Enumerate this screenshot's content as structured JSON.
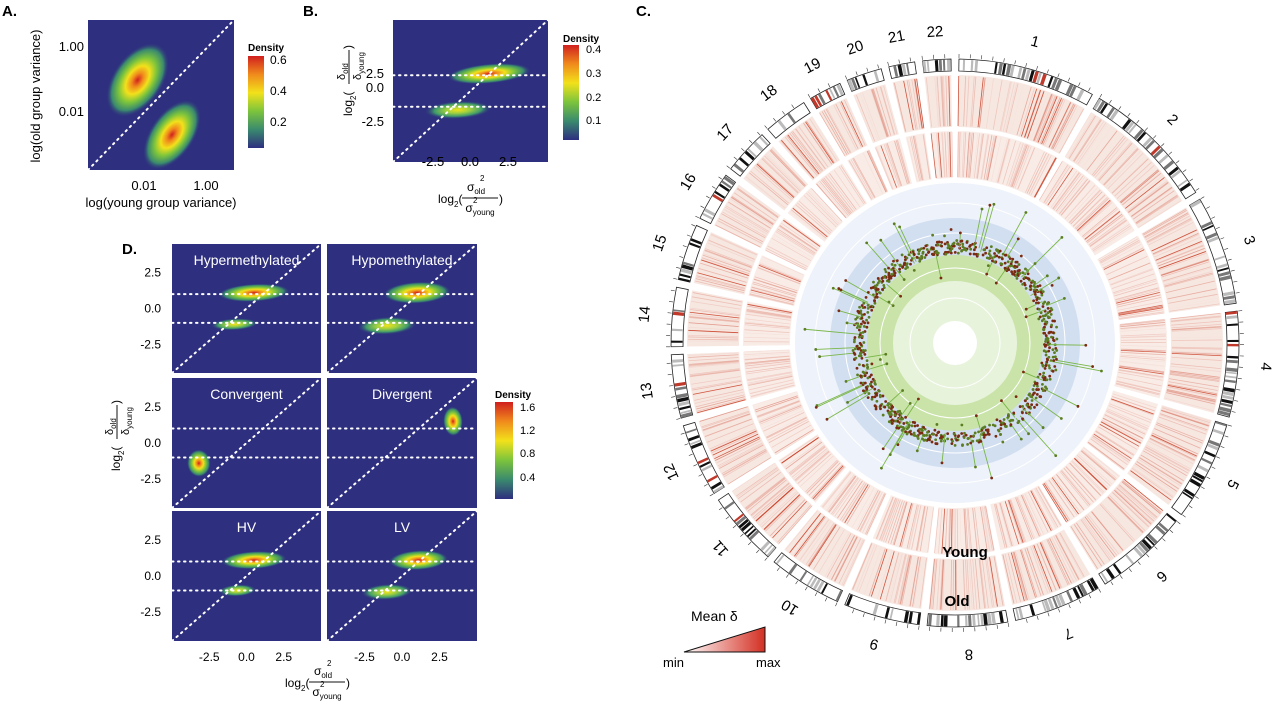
{
  "panels": {
    "A": {
      "label": "A.",
      "xlabel": "log(young group variance)",
      "ylabel": "log(old group variance)",
      "xticks": [
        "0.01",
        "1.00"
      ],
      "yticks": [
        "1.00",
        "0.01"
      ],
      "legend": {
        "title": "Density",
        "ticks": [
          "0.6",
          "0.4",
          "0.2"
        ]
      }
    },
    "B": {
      "label": "B.",
      "xticks": [
        "-2.5",
        "0.0",
        "2.5"
      ],
      "yticks": [
        "2.5",
        "0.0",
        "-2.5"
      ],
      "xlabel": {
        "prefix": "log",
        "sub": "2",
        "num": "σ",
        "num_sup": "2",
        "num_sub": "old",
        "den": "σ",
        "den_sup": "2",
        "den_sub": "young"
      },
      "ylabel": {
        "prefix": "log",
        "sub": "2",
        "num": "δ",
        "num_sub": "old",
        "den": "δ",
        "den_sub": "young"
      },
      "legend": {
        "title": "Density",
        "ticks": [
          "0.4",
          "0.3",
          "0.2",
          "0.1"
        ]
      }
    },
    "C": {
      "label": "C.",
      "chromosomes": [
        "1",
        "2",
        "3",
        "4",
        "5",
        "6",
        "7",
        "8",
        "9",
        "10",
        "11",
        "12",
        "13",
        "14",
        "15",
        "16",
        "17",
        "18",
        "19",
        "20",
        "21",
        "22"
      ],
      "ring_labels": {
        "young": "Young",
        "old": "Old"
      },
      "legend": {
        "title": "Mean δ",
        "min": "min",
        "max": "max"
      }
    },
    "D": {
      "label": "D.",
      "facets": [
        "Hypermethylated",
        "Hypomethylated",
        "Convergent",
        "Divergent",
        "HV",
        "LV"
      ],
      "xticks": [
        "-2.5",
        "0.0",
        "2.5"
      ],
      "yticks": [
        "2.5",
        "0.0",
        "-2.5"
      ],
      "legend": {
        "title": "Density",
        "ticks": [
          "1.6",
          "1.2",
          "0.8",
          "0.4"
        ]
      }
    }
  },
  "colors": {
    "panel_bg": "#2e2f7f",
    "reference_lines": "#ffffff",
    "density_scale": [
      "#2e2f7f",
      "#3a8a6e",
      "#7cc43c",
      "#f2e11b",
      "#f08a1c",
      "#d01f1f"
    ],
    "track_line": "#c8391f",
    "inner_green": "#c9e3a8",
    "inner_blue": "#bcd0ea"
  },
  "chart_data": [
    {
      "panel": "A",
      "type": "heatmap",
      "title": "",
      "xlabel": "log(young group variance)",
      "ylabel": "log(old group variance)",
      "x_scale": "log",
      "y_scale": "log",
      "xlim": [
        0.0002,
        20
      ],
      "ylim": [
        0.0002,
        20
      ],
      "reference_line": "y = x",
      "density_peaks": [
        {
          "x": 0.01,
          "y": 0.2,
          "density": 0.6
        },
        {
          "x": 0.15,
          "y": 0.003,
          "density": 0.45
        }
      ],
      "legend": "Density (0.1–0.6)"
    },
    {
      "panel": "B",
      "type": "heatmap",
      "title": "",
      "xlim": [
        -5,
        5
      ],
      "ylim": [
        -4.5,
        4.5
      ],
      "reference_lines": [
        "y = x",
        "y = 1",
        "y = -1"
      ],
      "density_peaks": [
        {
          "x": 1.2,
          "y": 1.1,
          "density": 0.4
        },
        {
          "x": -0.8,
          "y": -1.2,
          "density": 0.22
        }
      ],
      "legend": "Density (0.05–0.4)"
    },
    {
      "panel": "D",
      "type": "heatmap",
      "title": "",
      "xlim": [
        -5,
        5
      ],
      "ylim": [
        -4.5,
        4.5
      ],
      "reference_lines": [
        "y = x",
        "y = 1",
        "y = -1"
      ],
      "facets": [
        {
          "name": "Hypermethylated",
          "peaks": [
            {
              "x": 0.5,
              "y": 1.1,
              "density": 1.6
            },
            {
              "x": -0.8,
              "y": -1.1,
              "density": 0.5
            }
          ]
        },
        {
          "name": "Hypomethylated",
          "peaks": [
            {
              "x": 1.0,
              "y": 1.1,
              "density": 1.5
            },
            {
              "x": -1.0,
              "y": -1.2,
              "density": 0.9
            }
          ]
        },
        {
          "name": "Convergent",
          "peaks": [
            {
              "x": -3.2,
              "y": -1.4,
              "density": 1.6
            }
          ]
        },
        {
          "name": "Divergent",
          "peaks": [
            {
              "x": 3.4,
              "y": 1.5,
              "density": 1.6
            }
          ]
        },
        {
          "name": "HV",
          "peaks": [
            {
              "x": 0.5,
              "y": 1.1,
              "density": 1.5
            },
            {
              "x": -0.6,
              "y": -1.0,
              "density": 0.5
            }
          ]
        },
        {
          "name": "LV",
          "peaks": [
            {
              "x": 1.1,
              "y": 1.1,
              "density": 1.5
            },
            {
              "x": -1.0,
              "y": -1.1,
              "density": 0.9
            }
          ]
        }
      ],
      "legend": "Density (0.2–1.6)"
    },
    {
      "panel": "C",
      "type": "circos",
      "title": "",
      "tracks": [
        "chromosome ideogram",
        "Old mean δ",
        "Young mean δ",
        "scatter"
      ],
      "chromosome_lengths_mb": [
        249,
        243,
        198,
        191,
        181,
        171,
        159,
        145,
        138,
        134,
        135,
        133,
        115,
        107,
        102,
        90,
        83,
        80,
        59,
        64,
        47,
        51
      ]
    }
  ]
}
